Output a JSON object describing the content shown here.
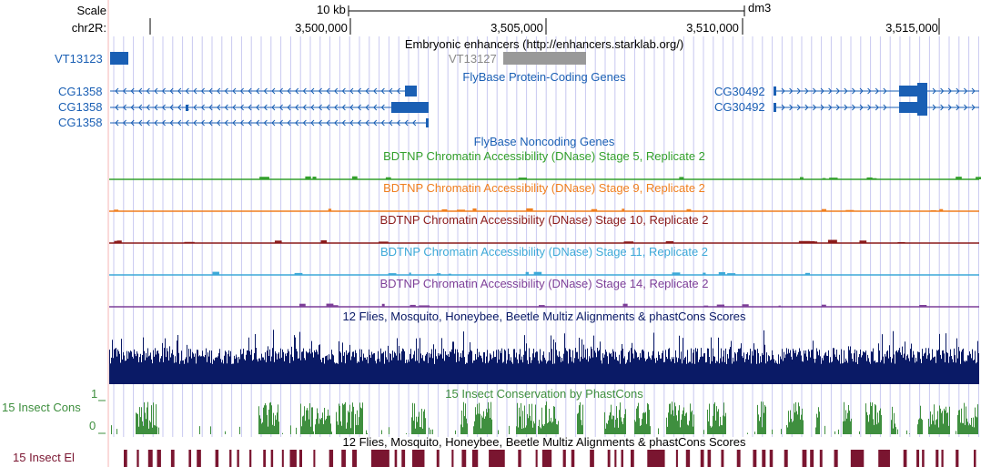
{
  "ruler": {
    "scale_label": "Scale",
    "chrom_label": "chr2R:",
    "scale_bar_label": "10 kb",
    "assembly": "dm3",
    "ticks": [
      "3,500,000",
      "3,505,000",
      "3,510,000",
      "3,515,000"
    ]
  },
  "tracks": {
    "enhancers": {
      "title": "Embryonic enhancers (http://enhancers.starklab.org/)",
      "items": [
        "VT13123",
        "VT13127"
      ]
    },
    "genes": {
      "title": "FlyBase Protein-Coding Genes",
      "left_labels": [
        "CG1358",
        "CG1358",
        "CG1358"
      ],
      "right_labels": [
        "CG30492",
        "CG30492"
      ]
    },
    "noncoding": {
      "title": "FlyBase Noncoding Genes"
    },
    "dnase": [
      {
        "title": "BDTNP Chromatin Accessibility (DNase) Stage 5, Replicate 2",
        "color": "#33a02c"
      },
      {
        "title": "BDTNP Chromatin Accessibility (DNase) Stage 9, Replicate 2",
        "color": "#f07f1e"
      },
      {
        "title": "BDTNP Chromatin Accessibility (DNase) Stage 10, Replicate 2",
        "color": "#8b1a1a"
      },
      {
        "title": "BDTNP Chromatin Accessibility (DNase) Stage 11, Replicate 2",
        "color": "#3da9d8"
      },
      {
        "title": "BDTNP Chromatin Accessibility (DNase) Stage 14, Replicate 2",
        "color": "#7d3f98"
      }
    ],
    "multiz": {
      "title": "12 Flies, Mosquito, Honeybee, Beetle Multiz Alignments & phastCons Scores",
      "color": "#0a1a66"
    },
    "phastcons": {
      "title": "15 Insect Conservation by PhastCons",
      "side_label": "15 Insect Cons",
      "ymax_label": "1",
      "ymin_label": "0",
      "color": "#3f8f3f"
    },
    "elements": {
      "title": "12 Flies, Mosquito, Honeybee, Beetle Multiz Alignments & phastCons Scores",
      "side_label": "15 Insect El",
      "color": "#7a1530"
    }
  },
  "colors": {
    "gene_blue": "#1a5fb4",
    "grid": "#c8c8f0",
    "left_guide": "#f4b6b6"
  }
}
